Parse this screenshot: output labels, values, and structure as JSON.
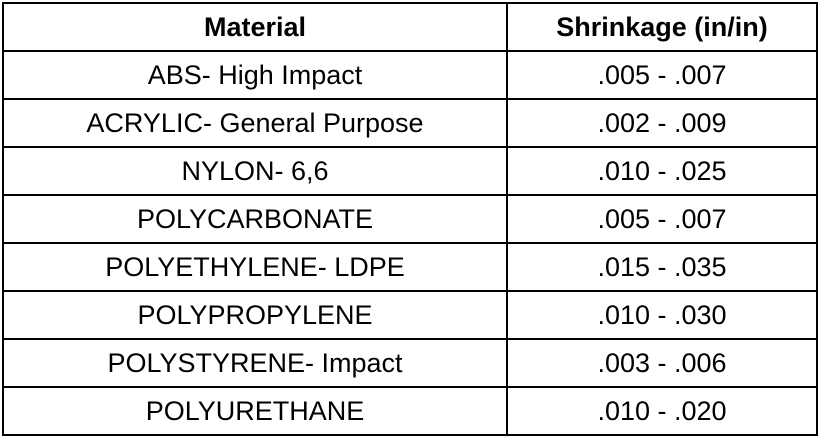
{
  "table": {
    "headers": [
      "Material",
      "Shrinkage (in/in)"
    ],
    "rows": [
      [
        "ABS- High Impact",
        ".005 - .007"
      ],
      [
        "ACRYLIC- General Purpose",
        ".002 - .009"
      ],
      [
        "NYLON- 6,6",
        ".010 - .025"
      ],
      [
        "POLYCARBONATE",
        ".005 - .007"
      ],
      [
        "POLYETHYLENE- LDPE",
        ".015 - .035"
      ],
      [
        "POLYPROPYLENE",
        ".010 - .030"
      ],
      [
        "POLYSTYRENE- Impact",
        ".003 - .006"
      ],
      [
        "POLYURETHANE",
        ".010 - .020"
      ]
    ]
  }
}
